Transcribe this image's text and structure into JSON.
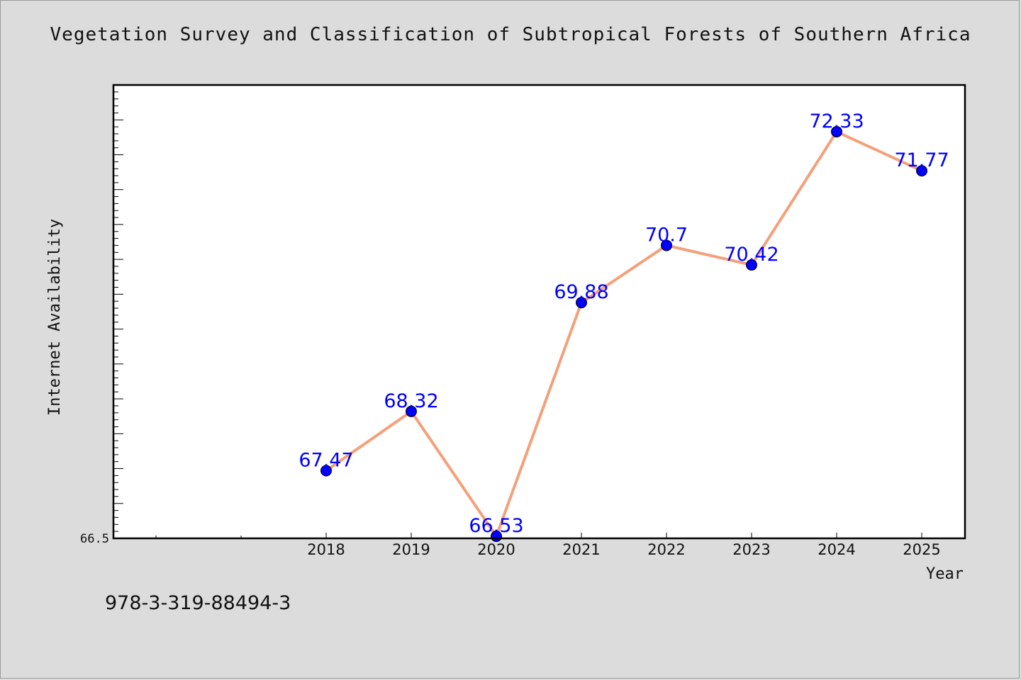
{
  "chart_data": {
    "type": "line",
    "title": "Vegetation Survey and Classification of Subtropical Forests of Southern Africa",
    "xlabel": "Year",
    "ylabel": "Internet Availability",
    "categories": [
      "2018",
      "2019",
      "2020",
      "2021",
      "2022",
      "2023",
      "2024",
      "2025"
    ],
    "series": [
      {
        "values": [
          67.47,
          68.32,
          66.53,
          69.88,
          70.7,
          70.42,
          72.33,
          71.77
        ]
      }
    ],
    "data_labels": [
      "67.47",
      "68.32",
      "66.53",
      "69.88",
      "70.7",
      "70.42",
      "72.33",
      "71.77"
    ],
    "y_tick_labels": [
      "66.5"
    ],
    "ylim": [
      66.5,
      73.0
    ],
    "grid": false,
    "colors": {
      "line": "#f4a07a",
      "marker": "#0000ff",
      "label": "#0000ff",
      "plot_background": "#ffffff",
      "page_background": "#dcdcdc"
    }
  },
  "footer": {
    "isbn": "978-3-319-88494-3"
  }
}
